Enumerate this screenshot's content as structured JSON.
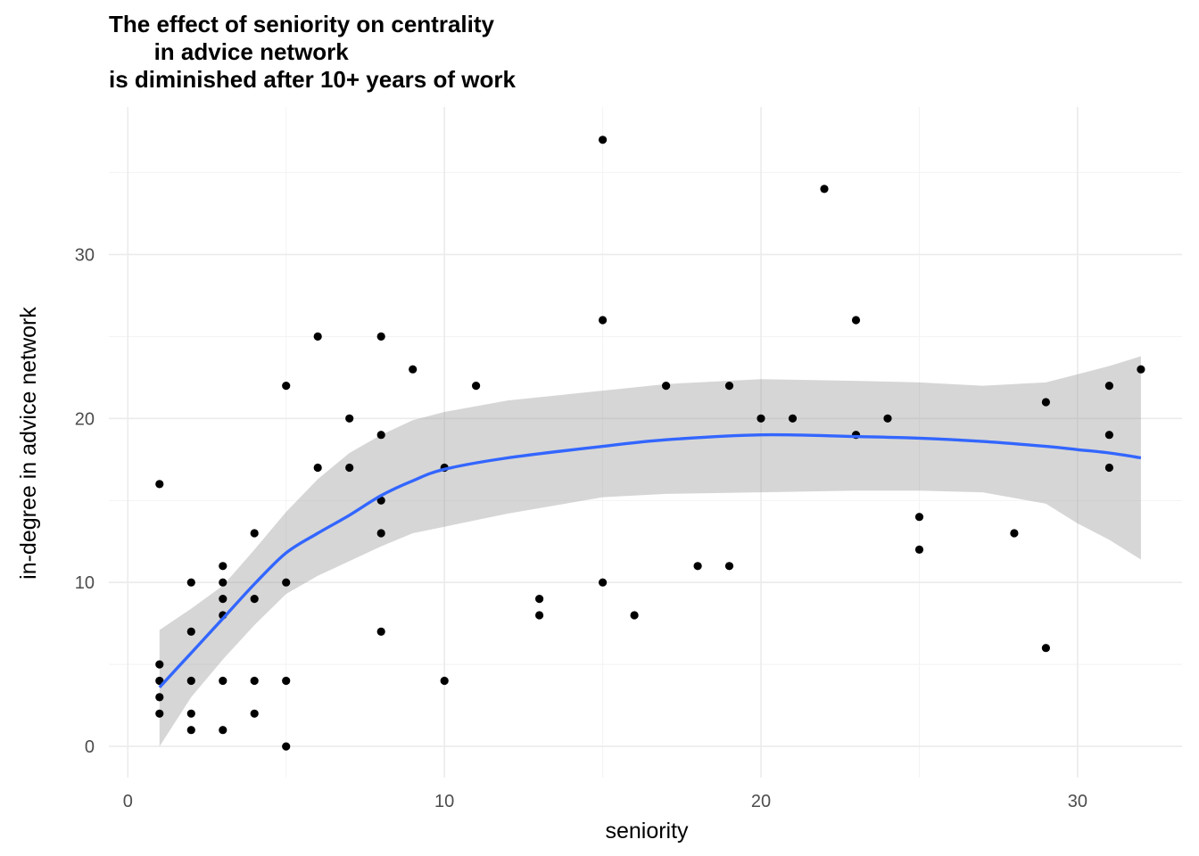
{
  "chart_data": {
    "type": "scatter",
    "title_lines": [
      "The effect of seniority on centrality",
      "       in advice network",
      "is diminished after 10+ years of work"
    ],
    "xlabel": "seniority",
    "ylabel": "in-degree in advice network",
    "xlim": [
      -0.6,
      33.3
    ],
    "ylim": [
      -1.9,
      39.0
    ],
    "x_ticks": [
      0,
      10,
      20,
      30
    ],
    "x_tick_labels": [
      "0",
      "10",
      "20",
      "30"
    ],
    "x_minor_ticks": [
      5,
      15,
      25
    ],
    "y_ticks": [
      0,
      10,
      20,
      30
    ],
    "y_tick_labels": [
      "0",
      "10",
      "20",
      "30"
    ],
    "y_minor_ticks": [
      5,
      15,
      25,
      35
    ],
    "grid": true,
    "legend": "none",
    "point_color": "#000000",
    "points": [
      {
        "x": 1,
        "y": 16
      },
      {
        "x": 1,
        "y": 5
      },
      {
        "x": 1,
        "y": 4
      },
      {
        "x": 1,
        "y": 3
      },
      {
        "x": 1,
        "y": 2
      },
      {
        "x": 2,
        "y": 10
      },
      {
        "x": 2,
        "y": 7
      },
      {
        "x": 2,
        "y": 4
      },
      {
        "x": 2,
        "y": 2
      },
      {
        "x": 2,
        "y": 1
      },
      {
        "x": 3,
        "y": 11
      },
      {
        "x": 3,
        "y": 10
      },
      {
        "x": 3,
        "y": 9
      },
      {
        "x": 3,
        "y": 8
      },
      {
        "x": 3,
        "y": 4
      },
      {
        "x": 3,
        "y": 1
      },
      {
        "x": 4,
        "y": 13
      },
      {
        "x": 4,
        "y": 9
      },
      {
        "x": 4,
        "y": 4
      },
      {
        "x": 4,
        "y": 2
      },
      {
        "x": 5,
        "y": 22
      },
      {
        "x": 5,
        "y": 10
      },
      {
        "x": 5,
        "y": 4
      },
      {
        "x": 5,
        "y": 0
      },
      {
        "x": 6,
        "y": 25
      },
      {
        "x": 6,
        "y": 17
      },
      {
        "x": 7,
        "y": 20
      },
      {
        "x": 7,
        "y": 17
      },
      {
        "x": 8,
        "y": 25
      },
      {
        "x": 8,
        "y": 19
      },
      {
        "x": 8,
        "y": 15
      },
      {
        "x": 8,
        "y": 13
      },
      {
        "x": 8,
        "y": 7
      },
      {
        "x": 9,
        "y": 23
      },
      {
        "x": 10,
        "y": 17
      },
      {
        "x": 10,
        "y": 4
      },
      {
        "x": 11,
        "y": 22
      },
      {
        "x": 13,
        "y": 9
      },
      {
        "x": 13,
        "y": 8
      },
      {
        "x": 15,
        "y": 37
      },
      {
        "x": 15,
        "y": 26
      },
      {
        "x": 15,
        "y": 10
      },
      {
        "x": 16,
        "y": 8
      },
      {
        "x": 17,
        "y": 22
      },
      {
        "x": 18,
        "y": 11
      },
      {
        "x": 19,
        "y": 22
      },
      {
        "x": 19,
        "y": 11
      },
      {
        "x": 20,
        "y": 20
      },
      {
        "x": 21,
        "y": 20
      },
      {
        "x": 22,
        "y": 34
      },
      {
        "x": 23,
        "y": 26
      },
      {
        "x": 23,
        "y": 19
      },
      {
        "x": 24,
        "y": 20
      },
      {
        "x": 25,
        "y": 14
      },
      {
        "x": 25,
        "y": 12
      },
      {
        "x": 28,
        "y": 13
      },
      {
        "x": 29,
        "y": 21
      },
      {
        "x": 29,
        "y": 6
      },
      {
        "x": 31,
        "y": 22
      },
      {
        "x": 31,
        "y": 19
      },
      {
        "x": 31,
        "y": 17
      },
      {
        "x": 32,
        "y": 23
      }
    ],
    "smooth": {
      "method": "loess",
      "color": "#3366FF",
      "ribbon_color": "#999999",
      "x": [
        1,
        2,
        3,
        4,
        5,
        6,
        7,
        8,
        9,
        10,
        12,
        15,
        17,
        20,
        23,
        25,
        27,
        29,
        30,
        31,
        32
      ],
      "fit": [
        3.6,
        5.7,
        7.8,
        9.9,
        11.8,
        13.0,
        14.1,
        15.3,
        16.2,
        16.9,
        17.6,
        18.3,
        18.7,
        19.0,
        18.9,
        18.8,
        18.6,
        18.3,
        18.1,
        17.9,
        17.6
      ],
      "upper": [
        7.1,
        8.4,
        9.8,
        12.0,
        14.3,
        16.3,
        17.9,
        19.0,
        19.9,
        20.4,
        21.1,
        21.7,
        22.1,
        22.4,
        22.3,
        22.2,
        22.0,
        22.2,
        22.7,
        23.2,
        23.8
      ],
      "lower": [
        0.0,
        3.0,
        5.3,
        7.4,
        9.3,
        10.4,
        11.3,
        12.2,
        13.0,
        13.4,
        14.2,
        15.2,
        15.4,
        15.5,
        15.6,
        15.6,
        15.5,
        14.8,
        13.6,
        12.6,
        11.4
      ]
    }
  }
}
